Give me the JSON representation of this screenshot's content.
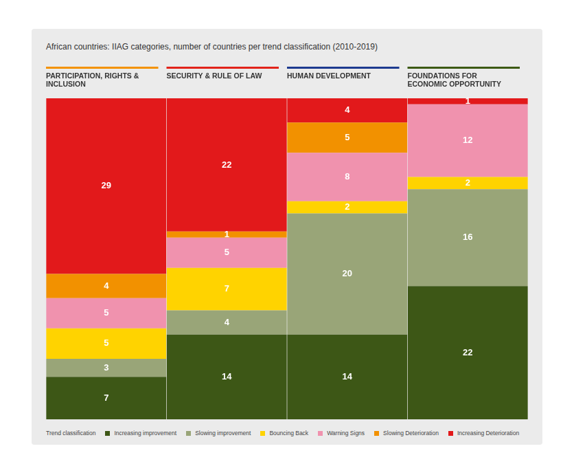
{
  "chart_data": {
    "type": "bar",
    "title": "African countries: IIAG categories, number of countries per trend classification (2010-2019)",
    "categories": [
      "PARTICIPATION, RIGHTS & INCLUSION",
      "SECURITY & RULE OF LAW",
      "HUMAN DEVELOPMENT",
      "FOUNDATIONS FOR ECONOMIC OPPORTUNITY"
    ],
    "series": [
      {
        "name": "Increasing improvement",
        "color": "#3d5716",
        "values": [
          7,
          14,
          14,
          22
        ]
      },
      {
        "name": "Slowing improvement",
        "color": "#99a578",
        "values": [
          3,
          4,
          20,
          16
        ]
      },
      {
        "name": "Bouncing Back",
        "color": "#ffd300",
        "values": [
          5,
          7,
          2,
          2
        ]
      },
      {
        "name": "Warning Signs",
        "color": "#f092ae",
        "values": [
          5,
          5,
          8,
          12
        ]
      },
      {
        "name": "Slowing Deterioration",
        "color": "#f29100",
        "values": [
          4,
          1,
          5,
          0
        ]
      },
      {
        "name": "Increasing Deterioration",
        "color": "#e2191b",
        "values": [
          29,
          22,
          4,
          1
        ]
      }
    ],
    "legend_title": "Trend classification",
    "legend": "bottom",
    "stacked": true,
    "data_labels": true,
    "tick_labels": false,
    "grid": false,
    "ylim": [
      0,
      53
    ]
  }
}
